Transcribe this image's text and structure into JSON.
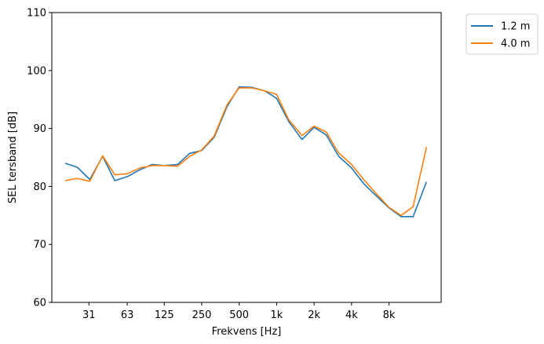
{
  "chart_data": {
    "type": "line",
    "xlabel": "Frekvens [Hz]",
    "ylabel": "SEL tersband [dB]",
    "ylim": [
      60,
      110
    ],
    "yticks": [
      60,
      70,
      80,
      90,
      100,
      110
    ],
    "xscale": "log",
    "xticks": [
      {
        "value": 31,
        "label": "31"
      },
      {
        "value": 63,
        "label": "63"
      },
      {
        "value": 125,
        "label": "125"
      },
      {
        "value": 250,
        "label": "250"
      },
      {
        "value": 500,
        "label": "500"
      },
      {
        "value": 1000,
        "label": "1k"
      },
      {
        "value": 2000,
        "label": "2k"
      },
      {
        "value": 4000,
        "label": "4k"
      },
      {
        "value": 8000,
        "label": "8k"
      }
    ],
    "x": [
      20,
      25,
      31.5,
      40,
      50,
      63,
      80,
      100,
      125,
      160,
      200,
      250,
      315,
      400,
      500,
      630,
      800,
      1000,
      1250,
      1600,
      2000,
      2500,
      3150,
      4000,
      5000,
      6300,
      8000,
      10000,
      12500,
      16000
    ],
    "series": [
      {
        "name": "1.2 m",
        "color": "#1f77b4",
        "values": [
          84.0,
          83.3,
          81.2,
          85.2,
          81.0,
          81.7,
          82.9,
          83.8,
          83.6,
          83.8,
          85.7,
          86.2,
          88.5,
          93.8,
          97.2,
          97.1,
          96.5,
          95.2,
          91.2,
          88.1,
          90.2,
          88.9,
          85.2,
          83.2,
          80.5,
          78.4,
          76.3,
          74.8,
          74.8,
          80.8
        ]
      },
      {
        "name": "4.0 m",
        "color": "#ff7f0e",
        "values": [
          81.0,
          81.4,
          80.9,
          85.3,
          82.0,
          82.2,
          83.2,
          83.6,
          83.6,
          83.5,
          85.2,
          86.3,
          88.7,
          94.1,
          97.0,
          97.0,
          96.5,
          95.9,
          91.5,
          88.8,
          90.4,
          89.4,
          85.8,
          83.8,
          81.2,
          78.8,
          76.4,
          75.0,
          76.5,
          86.8
        ]
      }
    ],
    "legend": {
      "placement": "outside-top-right"
    },
    "grid": false
  }
}
